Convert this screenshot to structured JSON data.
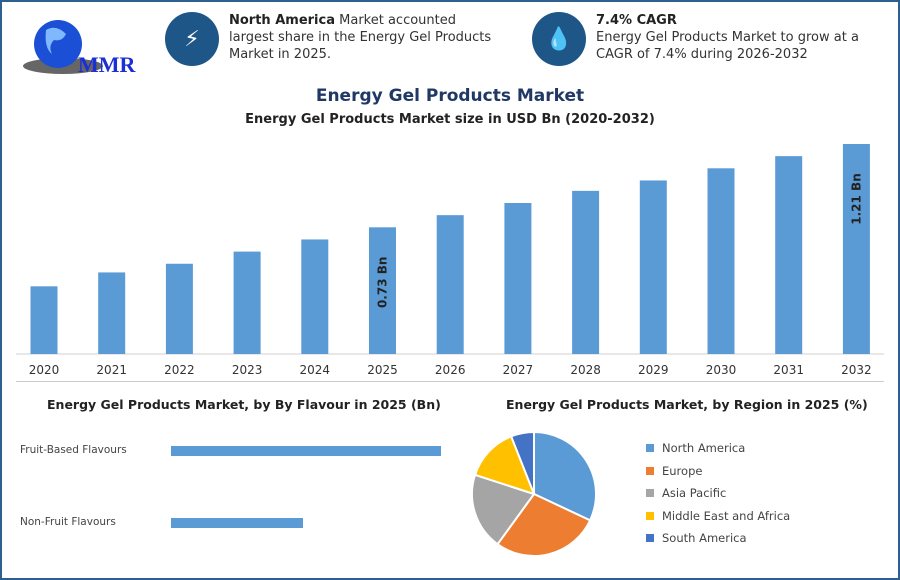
{
  "logo": {
    "text": "MMR"
  },
  "info1": {
    "bold": "North America",
    "text": " Market accounted largest share in the Energy Gel Products Market in 2025.",
    "icon": "lightning-icon"
  },
  "info2": {
    "bold": "7.4% CAGR",
    "text": "Energy Gel Products Market to grow at a CAGR of 7.4% during 2026-2032",
    "icon": "flame-drop-icon"
  },
  "chart_data": [
    {
      "type": "bar",
      "title": "Energy Gel Products Market",
      "subtitle": "Energy Gel Products Market size in USD Bn (2020-2032)",
      "categories": [
        "2020",
        "2021",
        "2022",
        "2023",
        "2024",
        "2025",
        "2026",
        "2027",
        "2028",
        "2029",
        "2030",
        "2031",
        "2032"
      ],
      "values": [
        0.39,
        0.47,
        0.52,
        0.59,
        0.66,
        0.73,
        0.8,
        0.87,
        0.94,
        1.0,
        1.07,
        1.14,
        1.21
      ],
      "data_labels": {
        "2025": "0.73 Bn",
        "2032": "1.21 Bn"
      },
      "color": "#5b9bd5",
      "ylim": [
        0,
        1.25
      ],
      "grid": false
    },
    {
      "type": "bar",
      "orientation": "horizontal",
      "title": "Energy Gel Products Market, by By Flavour in 2025 (Bn)",
      "categories": [
        "Fruit-Based Flavours",
        "Non-Fruit Flavours"
      ],
      "values": [
        0.49,
        0.24
      ],
      "color": "#5b9bd5"
    },
    {
      "type": "pie",
      "title": "Energy Gel Products Market, by Region in 2025 (%)",
      "categories": [
        "North America",
        "Europe",
        "Asia Pacific",
        "Middle East and Africa",
        "South America"
      ],
      "values": [
        32,
        28,
        20,
        14,
        6
      ],
      "colors": [
        "#5b9bd5",
        "#ed7d31",
        "#a5a5a5",
        "#ffc000",
        "#4472c4"
      ],
      "legend": "right"
    }
  ]
}
